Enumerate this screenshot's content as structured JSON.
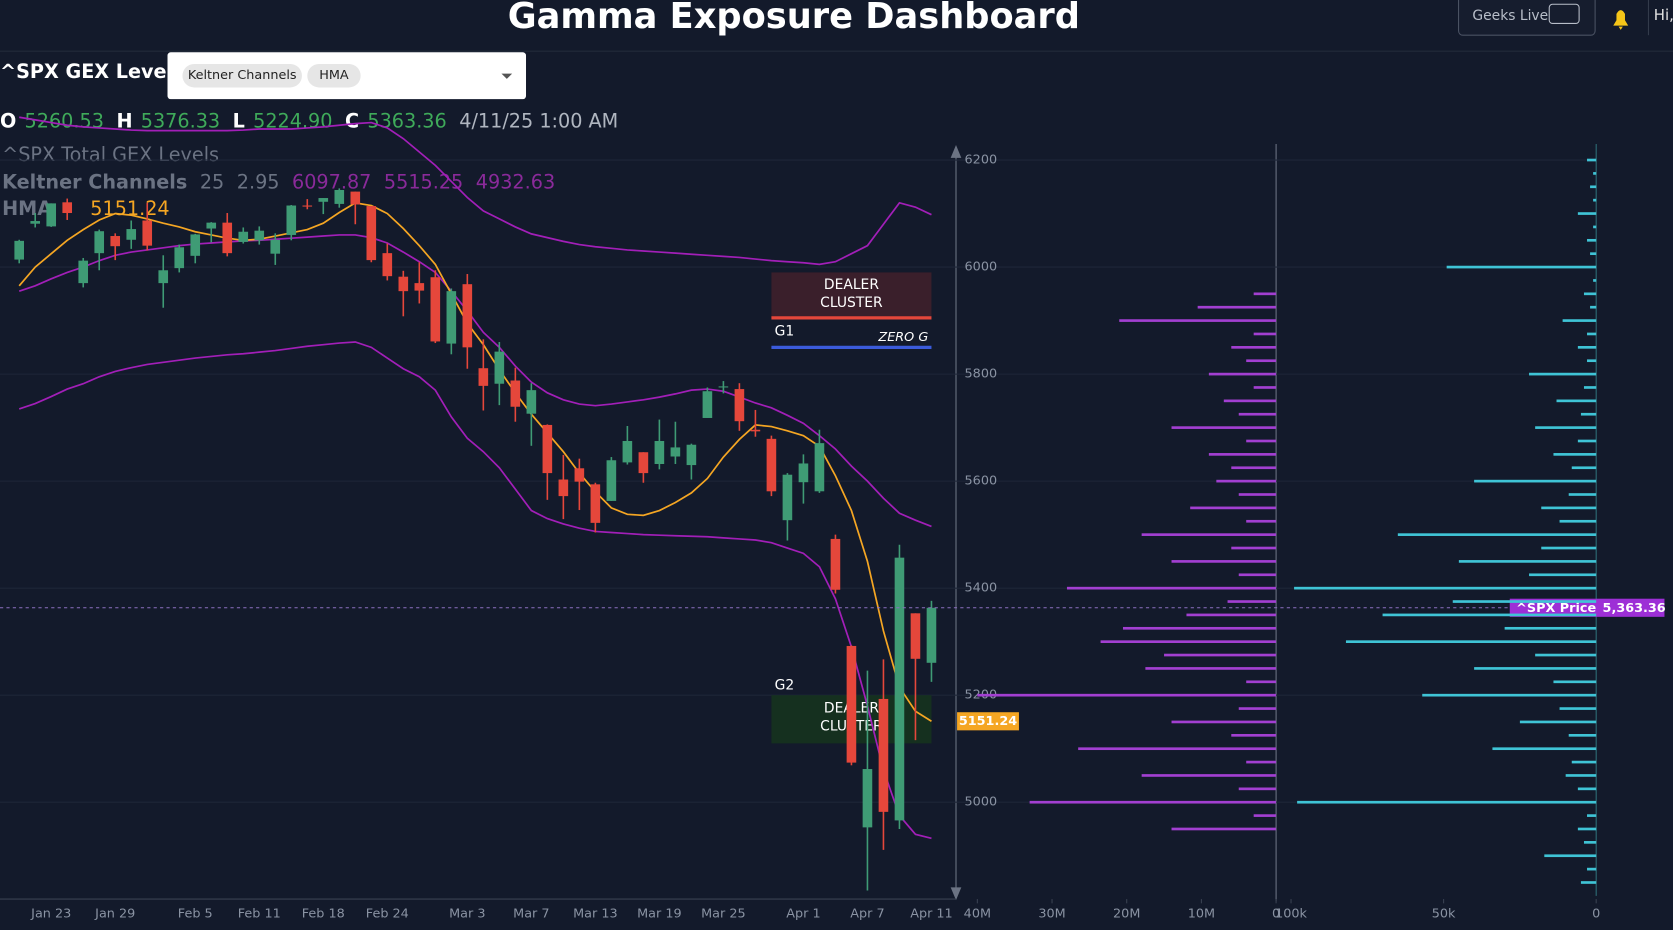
{
  "header": {
    "title": "Gamma Exposure Dashboard",
    "live_button": "Geeks Live",
    "greeting": "Hi,"
  },
  "toolbar": {
    "symbol": "^SPX GEX Levels",
    "chips": [
      "Keltner Channels",
      "HMA"
    ]
  },
  "chart_data": [
    {
      "type": "candlestick",
      "title": "^SPX Total GEX Levels",
      "ohlc_letters": [
        "O",
        "H",
        "L",
        "C"
      ],
      "last_bar_labels": {
        "open": "5260.53",
        "high": "5376.33",
        "low": "5224.90",
        "close": "5363.36"
      },
      "last_time": "4/11/25 1:00 AM",
      "categories": [
        null,
        null,
        "Jan 23",
        null,
        null,
        null,
        "Jan 29",
        null,
        null,
        null,
        null,
        "Feb 5",
        null,
        null,
        null,
        "Feb 11",
        null,
        null,
        null,
        "Feb 18",
        null,
        null,
        null,
        "Feb 24",
        null,
        null,
        null,
        null,
        "Mar 3",
        null,
        null,
        null,
        "Mar 7",
        null,
        null,
        null,
        "Mar 13",
        null,
        null,
        null,
        "Mar 19",
        null,
        null,
        null,
        "Mar 25",
        null,
        null,
        null,
        null,
        "Apr 1",
        null,
        null,
        null,
        "Apr 7",
        null,
        null,
        null,
        "Apr 11"
      ],
      "open": [
        6014,
        6081,
        6076,
        6121,
        5970,
        6026,
        6058,
        6051,
        6087,
        5970,
        5998,
        6021,
        6072,
        6083,
        6047,
        6050,
        6025,
        6060,
        6115,
        6122,
        6118,
        6141,
        6114,
        6026,
        5982,
        5970,
        5981,
        5857,
        5968,
        5811,
        5782,
        5788,
        5726,
        5705,
        5603,
        5624,
        5594,
        5563,
        5635,
        5654,
        5632,
        5646,
        5630,
        5718,
        5775,
        5772,
        5696,
        5679,
        5527,
        5598,
        5581,
        5492,
        5292,
        4953,
        5193,
        4966,
        5353,
        5260.53
      ],
      "high": [
        6051,
        6101,
        6119,
        6128,
        6017,
        6070,
        6063,
        6087,
        6120,
        6022,
        6042,
        6062,
        6084,
        6101,
        6074,
        6076,
        6063,
        6116,
        6127,
        6129,
        6147,
        6141,
        6114,
        6044,
        5993,
        6009,
        5994,
        5960,
        5987,
        5865,
        5860,
        5812,
        5783,
        5706,
        5649,
        5642,
        5597,
        5645,
        5703,
        5654,
        5715,
        5711,
        5670,
        5775,
        5787,
        5783,
        5733,
        5685,
        5615,
        5650,
        5696,
        5500,
        5293,
        5246,
        5267,
        5481,
        5353,
        5376.33
      ],
      "low": [
        6007,
        6074,
        6075,
        6088,
        5962,
        5994,
        6013,
        6034,
        6031,
        5924,
        5990,
        6007,
        6046,
        6020,
        6044,
        6042,
        6004,
        6050,
        6108,
        6099,
        6111,
        6080,
        6009,
        5975,
        5908,
        5932,
        5858,
        5837,
        5810,
        5732,
        5742,
        5711,
        5666,
        5565,
        5529,
        5546,
        5504,
        5563,
        5631,
        5597,
        5622,
        5632,
        5603,
        5718,
        5764,
        5694,
        5683,
        5572,
        5489,
        5558,
        5578,
        5390,
        5069,
        4835,
        4911,
        4950,
        5116,
        5224.9
      ],
      "close": [
        6049,
        6086,
        6119,
        6101,
        6012,
        6067,
        6039,
        6071,
        6040,
        5994,
        6037,
        6061,
        6083,
        6026,
        6066,
        6068,
        6051,
        6115,
        6114,
        6129,
        6144,
        6117,
        6013,
        5983,
        5955,
        5956,
        5861,
        5955,
        5850,
        5778,
        5842,
        5739,
        5770,
        5615,
        5572,
        5599,
        5522,
        5639,
        5675,
        5615,
        5675,
        5663,
        5668,
        5768,
        5777,
        5712,
        5693,
        5581,
        5612,
        5633,
        5671,
        5397,
        5074,
        5062,
        4982,
        5457,
        5268,
        5363.36
      ],
      "up_color": "#3f9b75",
      "down_color": "#e5473b",
      "ylim": [
        4825,
        6230
      ],
      "yticks": [
        5000,
        5200,
        5400,
        5600,
        5800,
        6000,
        6200
      ],
      "grid": true,
      "keltner": {
        "name": "Keltner Channels",
        "period": 25,
        "multiplier": 2.95,
        "color": "#a21fb8",
        "upper": [
          6280,
          6275,
          6270,
          6265,
          6262,
          6260,
          6258,
          6256,
          6255,
          6255,
          6255,
          6255,
          6255,
          6255,
          6256,
          6258,
          6258,
          6258,
          6260,
          6262,
          6265,
          6268,
          6270,
          6260,
          6240,
          6215,
          6190,
          6160,
          6130,
          6105,
          6090,
          6075,
          6062,
          6055,
          6048,
          6042,
          6038,
          6035,
          6032,
          6030,
          6028,
          6026,
          6024,
          6022,
          6020,
          6018,
          6015,
          6012,
          6010,
          6008,
          6005,
          6010,
          6025,
          6040,
          6080,
          6120,
          6112,
          6097.87
        ],
        "middle": [
          5955,
          5965,
          5978,
          5990,
          6000,
          6012,
          6022,
          6028,
          6032,
          6036,
          6040,
          6043,
          6045,
          6047,
          6049,
          6050,
          6052,
          6054,
          6056,
          6058,
          6060,
          6060,
          6055,
          6045,
          6028,
          6010,
          5990,
          5955,
          5918,
          5878,
          5850,
          5815,
          5785,
          5765,
          5752,
          5744,
          5741,
          5744,
          5748,
          5752,
          5757,
          5763,
          5770,
          5772,
          5768,
          5757,
          5746,
          5737,
          5723,
          5708,
          5685,
          5660,
          5628,
          5600,
          5568,
          5540,
          5527,
          5515.25
        ],
        "lower": [
          5735,
          5745,
          5758,
          5772,
          5782,
          5795,
          5805,
          5812,
          5818,
          5822,
          5826,
          5830,
          5833,
          5836,
          5838,
          5841,
          5844,
          5848,
          5852,
          5855,
          5858,
          5860,
          5850,
          5830,
          5810,
          5795,
          5770,
          5720,
          5680,
          5655,
          5625,
          5585,
          5545,
          5530,
          5520,
          5512,
          5506,
          5504,
          5502,
          5500,
          5499,
          5498,
          5497,
          5496,
          5494,
          5492,
          5490,
          5485,
          5475,
          5465,
          5440,
          5380,
          5290,
          5180,
          5060,
          4975,
          4940,
          4932.63
        ]
      },
      "hma": {
        "name": "HMA",
        "color": "#f5a623",
        "values": [
          5965,
          6000,
          6025,
          6050,
          6070,
          6088,
          6100,
          6097,
          6090,
          6082,
          6075,
          6066,
          6060,
          6054,
          6050,
          6052,
          6058,
          6064,
          6070,
          6082,
          6102,
          6120,
          6115,
          6100,
          6072,
          6040,
          6005,
          5950,
          5895,
          5855,
          5808,
          5765,
          5725,
          5690,
          5655,
          5615,
          5580,
          5550,
          5538,
          5536,
          5545,
          5560,
          5578,
          5605,
          5645,
          5678,
          5705,
          5702,
          5694,
          5685,
          5665,
          5610,
          5545,
          5450,
          5320,
          5215,
          5170,
          5151.24
        ]
      },
      "price_marker": {
        "name": "^SPX Price",
        "value_label": "5,363.36",
        "color": "#9d2fd6"
      },
      "annotations": [
        {
          "label": "DEALER CLUSTER",
          "from": 5905,
          "to": 5990,
          "fill": "#3a1f2b",
          "edge": "#e5473b"
        },
        {
          "label": "G1",
          "at": 5880
        },
        {
          "label": "ZERO G",
          "at": 5850,
          "color": "#3b5bdb"
        },
        {
          "label": "G2",
          "at": 5218
        },
        {
          "label": "DEALER CLUSTER",
          "from": 5110,
          "to": 5200,
          "fill": "#15301f"
        }
      ]
    },
    {
      "type": "hbar",
      "y": [
        4850,
        4875,
        4900,
        4925,
        4950,
        4975,
        5000,
        5025,
        5050,
        5075,
        5100,
        5125,
        5150,
        5175,
        5200,
        5225,
        5250,
        5275,
        5300,
        5325,
        5350,
        5375,
        5400,
        5425,
        5450,
        5475,
        5500,
        5525,
        5550,
        5575,
        5600,
        5625,
        5650,
        5675,
        5700,
        5725,
        5750,
        5775,
        5800,
        5825,
        5850,
        5875,
        5900,
        5925,
        5950,
        5975,
        6000,
        6025,
        6050,
        6075,
        6100,
        6125,
        6150,
        6175,
        6200
      ],
      "xlim": [
        40000000,
        0
      ],
      "xticks": [
        {
          "value": 40000000,
          "label": "40M"
        },
        {
          "value": 30000000,
          "label": "30M"
        },
        {
          "value": 20000000,
          "label": "20M"
        },
        {
          "value": 10000000,
          "label": "10M"
        },
        0
      ],
      "x2lim": [
        100000,
        0
      ],
      "x2ticks": [
        {
          "value": 100000,
          "label": "100k"
        },
        {
          "value": 50000,
          "label": "50k"
        },
        0
      ],
      "series": [
        {
          "color": "#a23fd1",
          "values": [
            null,
            null,
            null,
            null,
            14000000,
            3000000,
            33000000,
            5000000,
            18000000,
            4000000,
            26500000,
            6000000,
            14000000,
            5000000,
            40000000,
            4000000,
            17500000,
            15000000,
            23500000,
            20500000,
            12000000,
            6500000,
            28000000,
            5000000,
            14000000,
            6000000,
            18000000,
            4000000,
            11500000,
            5000000,
            8000000,
            6000000,
            9000000,
            4000000,
            14000000,
            5000000,
            7000000,
            3000000,
            9000000,
            4000000,
            6000000,
            3000000,
            21000000,
            10500000,
            3000000,
            null,
            null,
            null,
            null,
            null,
            null,
            null,
            null,
            null,
            null
          ]
        },
        {
          "color": "#3fc4d6",
          "axis": "x2",
          "values": [
            5000,
            3000,
            17000,
            4000,
            6000,
            3000,
            98000,
            6000,
            10000,
            8000,
            34000,
            9000,
            25000,
            12000,
            57000,
            14000,
            40000,
            20000,
            82000,
            30000,
            70000,
            47000,
            99000,
            22000,
            45000,
            18000,
            65000,
            12000,
            18000,
            9000,
            40000,
            8000,
            14000,
            6000,
            20000,
            5000,
            13000,
            4000,
            22000,
            3000,
            6000,
            3000,
            11000,
            2000,
            4000,
            1000,
            49000,
            2000,
            3000,
            1000,
            6000,
            1000,
            2000,
            1000,
            3000
          ]
        }
      ]
    }
  ]
}
